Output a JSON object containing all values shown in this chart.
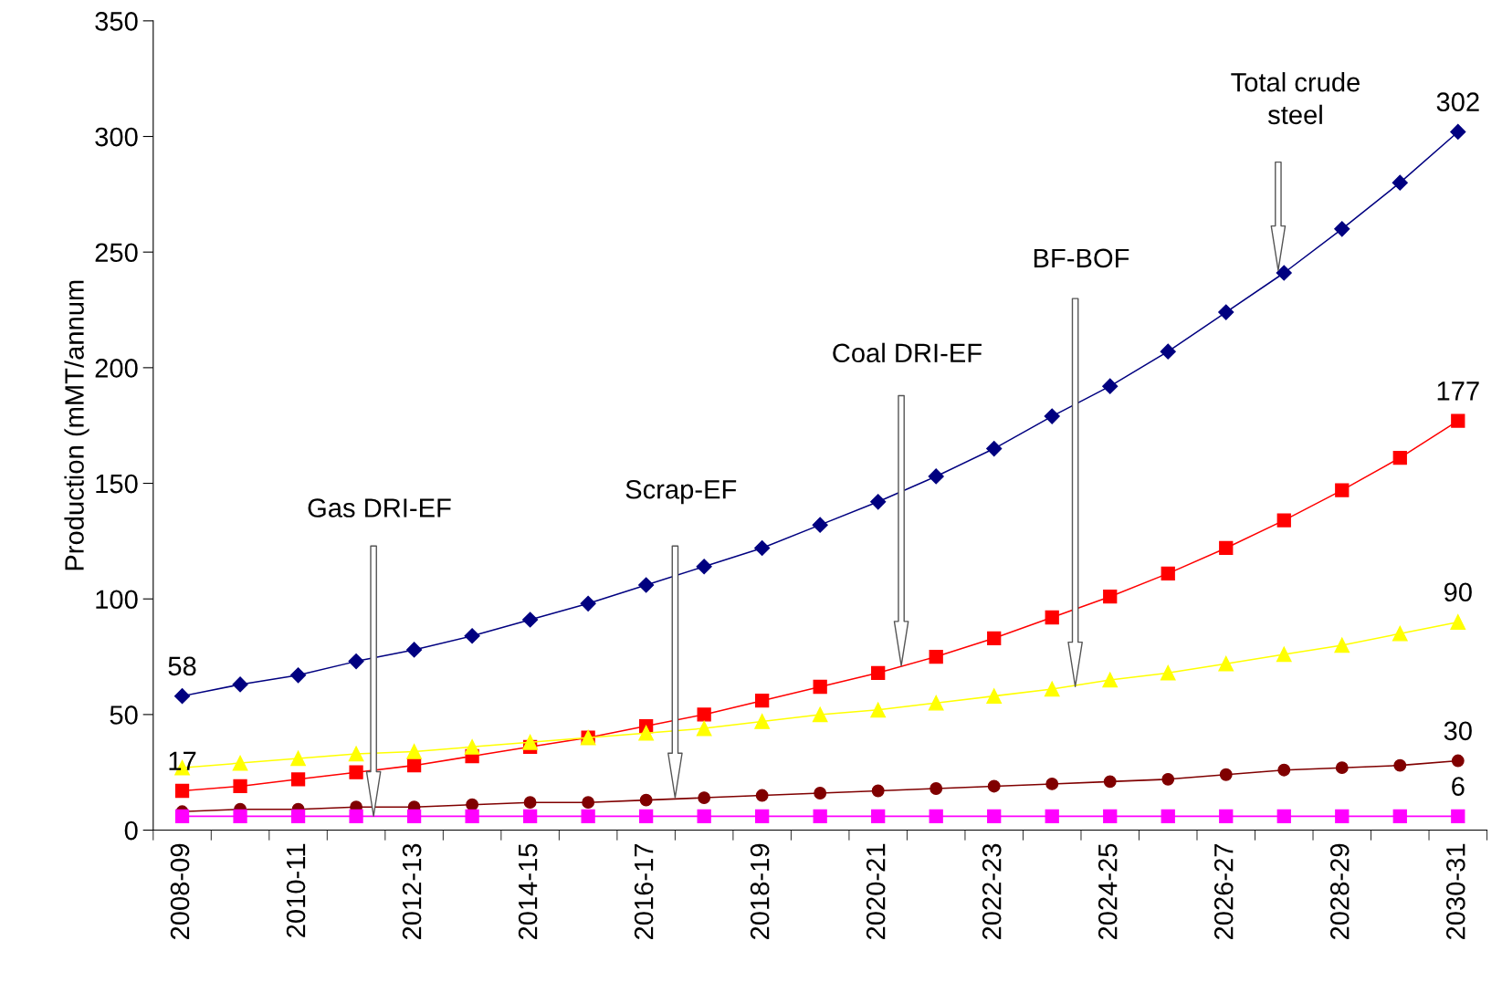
{
  "chart_data": {
    "type": "line",
    "ylabel": "Production (mMT/annum",
    "categories": [
      "2008-09",
      null,
      "2010-11",
      null,
      "2012-13",
      null,
      "2014-15",
      null,
      "2016-17",
      null,
      "2018-19",
      null,
      "2020-21",
      null,
      "2022-23",
      null,
      "2024-25",
      null,
      "2026-27",
      null,
      "2028-29",
      null,
      "2030-31"
    ],
    "ylim": [
      0,
      350
    ],
    "yticks": [
      0,
      50,
      100,
      150,
      200,
      250,
      300,
      350
    ],
    "grid": false,
    "legend": false,
    "series": [
      {
        "color": "#000080",
        "marker": "diamond",
        "values": [
          58,
          63,
          67,
          73,
          78,
          84,
          91,
          98,
          106,
          114,
          122,
          132,
          142,
          153,
          165,
          179,
          192,
          207,
          224,
          241,
          260,
          280,
          302
        ],
        "value_labels": [
          "58",
          null,
          null,
          null,
          null,
          null,
          null,
          null,
          null,
          null,
          null,
          null,
          null,
          null,
          null,
          null,
          null,
          null,
          null,
          null,
          null,
          null,
          "302"
        ]
      },
      {
        "color": "#ff0000",
        "marker": "square",
        "values": [
          17,
          19,
          22,
          25,
          28,
          32,
          36,
          40,
          45,
          50,
          56,
          62,
          68,
          75,
          83,
          92,
          101,
          111,
          122,
          134,
          147,
          161,
          177
        ],
        "value_labels": [
          "17",
          null,
          null,
          null,
          null,
          null,
          null,
          null,
          null,
          null,
          null,
          null,
          null,
          null,
          null,
          null,
          null,
          null,
          null,
          null,
          null,
          null,
          "177"
        ]
      },
      {
        "color": "#ffff00",
        "marker": "triangle",
        "values": [
          27,
          29,
          31,
          33,
          34,
          36,
          38,
          40,
          42,
          44,
          47,
          50,
          52,
          55,
          58,
          61,
          65,
          68,
          72,
          76,
          80,
          85,
          90
        ],
        "value_labels": [
          null,
          null,
          null,
          null,
          null,
          null,
          null,
          null,
          null,
          null,
          null,
          null,
          null,
          null,
          null,
          null,
          null,
          null,
          null,
          null,
          null,
          null,
          "90"
        ]
      },
      {
        "color": "#800000",
        "marker": "circle",
        "values": [
          8,
          9,
          9,
          10,
          10,
          11,
          12,
          12,
          13,
          14,
          15,
          16,
          17,
          18,
          19,
          20,
          21,
          22,
          24,
          26,
          27,
          28,
          30
        ],
        "value_labels": [
          null,
          null,
          null,
          null,
          null,
          null,
          null,
          null,
          null,
          null,
          null,
          null,
          null,
          null,
          null,
          null,
          null,
          null,
          null,
          null,
          null,
          null,
          "30"
        ]
      },
      {
        "color": "#ff00ff",
        "marker": "square",
        "values": [
          6,
          6,
          6,
          6,
          6,
          6,
          6,
          6,
          6,
          6,
          6,
          6,
          6,
          6,
          6,
          6,
          6,
          6,
          6,
          6,
          6,
          6,
          6
        ],
        "value_labels": [
          null,
          null,
          null,
          null,
          null,
          null,
          null,
          null,
          null,
          null,
          null,
          null,
          null,
          null,
          null,
          null,
          null,
          null,
          null,
          null,
          null,
          null,
          "6"
        ]
      }
    ],
    "annotations": [
      "Gas DRI-EF",
      "Scrap-EF",
      "Coal DRI-EF",
      "BF-BOF",
      "Total crude\nsteel"
    ]
  }
}
